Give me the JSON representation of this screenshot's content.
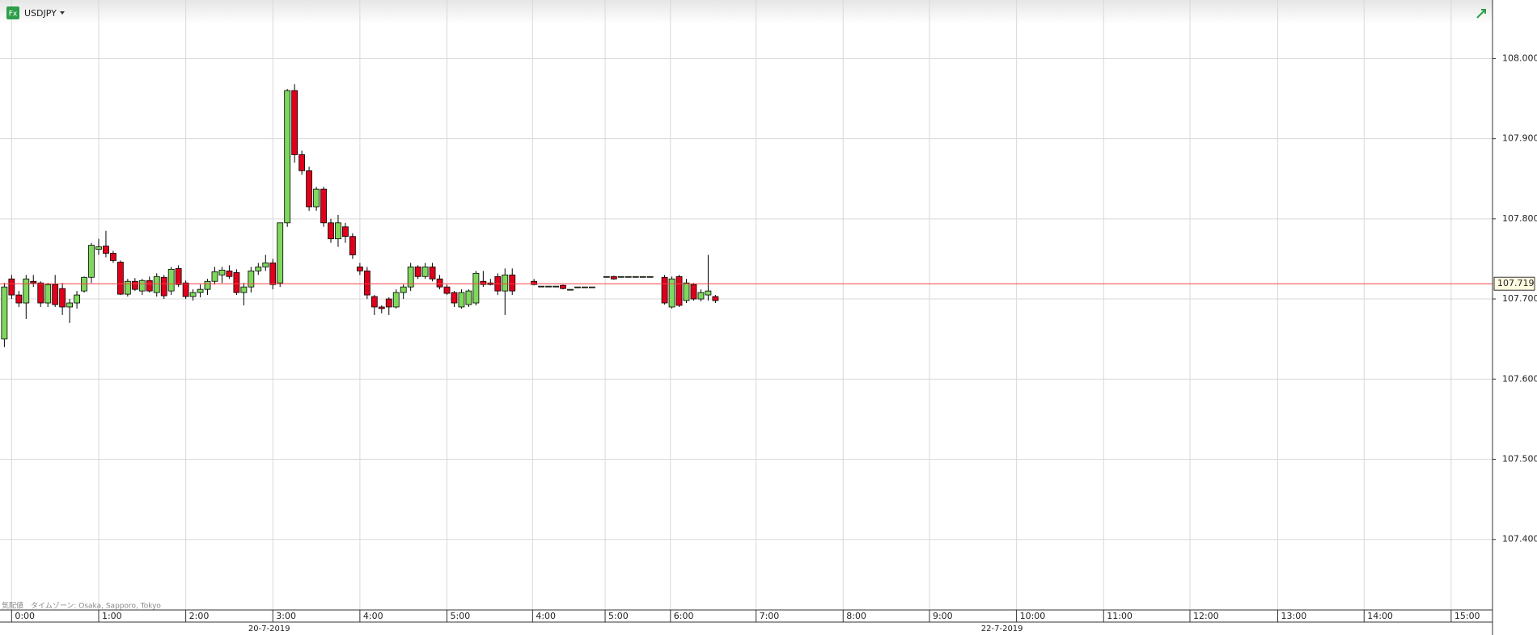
{
  "chart_data": {
    "type": "candlestick",
    "icon": "Fx",
    "symbol": "USDJPY",
    "footnote": "気配値　タイムゾーン:  Osaka, Sapporo, Tokyo",
    "series": [
      {
        "name": "USDJPY",
        "up_color": "#7fd85c",
        "down_color": "#e0001b",
        "x": [
          -1,
          0,
          1,
          2,
          3,
          4,
          5,
          6,
          7,
          8,
          9,
          10,
          11,
          12,
          13,
          14,
          15,
          16,
          17,
          18,
          19,
          20,
          21,
          22,
          23,
          24,
          25,
          26,
          27,
          28,
          29,
          30,
          31,
          32,
          33,
          34,
          35,
          36,
          37,
          38,
          39,
          40,
          41,
          42,
          43,
          44,
          45,
          46,
          47,
          48,
          49,
          50,
          51,
          52,
          53,
          54,
          55,
          56,
          57,
          58,
          59,
          60,
          61,
          62,
          63,
          64,
          65,
          66,
          67,
          68,
          69,
          72,
          73,
          74,
          75,
          76,
          77,
          78,
          79,
          80,
          82,
          83,
          84,
          85,
          86,
          87,
          88,
          90,
          91,
          92,
          93,
          94,
          95,
          96,
          97
        ],
        "open": [
          107.65,
          107.725,
          107.705,
          107.695,
          107.722,
          107.72,
          107.695,
          107.718,
          107.713,
          107.69,
          107.695,
          107.71,
          107.727,
          107.762,
          107.766,
          107.757,
          107.746,
          107.706,
          107.722,
          107.71,
          107.723,
          107.708,
          107.727,
          107.71,
          107.738,
          107.72,
          107.703,
          107.708,
          107.712,
          107.722,
          107.73,
          107.735,
          107.733,
          107.708,
          107.715,
          107.735,
          107.74,
          107.745,
          107.72,
          107.795,
          107.96,
          107.88,
          107.86,
          107.815,
          107.837,
          107.795,
          107.775,
          107.79,
          107.778,
          107.74,
          107.735,
          107.703,
          107.69,
          107.7,
          107.69,
          107.708,
          107.715,
          107.74,
          107.728,
          107.74,
          107.725,
          107.715,
          107.708,
          107.69,
          107.693,
          107.695,
          107.722,
          107.72,
          107.728,
          107.71,
          107.73,
          107.722,
          107.716,
          107.716,
          107.716,
          107.717,
          107.712,
          107.715,
          107.715,
          107.715,
          107.728,
          107.728,
          107.728,
          107.728,
          107.728,
          107.728,
          107.728,
          107.727,
          107.69,
          107.728,
          107.698,
          107.718,
          107.7,
          107.705,
          107.703
        ],
        "high": [
          107.72,
          107.73,
          107.71,
          107.73,
          107.73,
          107.722,
          107.72,
          107.73,
          107.72,
          107.7,
          107.71,
          107.728,
          107.77,
          107.775,
          107.785,
          107.76,
          107.748,
          107.725,
          107.726,
          107.725,
          107.728,
          107.732,
          107.73,
          107.74,
          107.742,
          107.723,
          107.712,
          107.718,
          107.725,
          107.74,
          107.74,
          107.742,
          107.737,
          107.72,
          107.74,
          107.745,
          107.755,
          107.75,
          107.795,
          107.962,
          107.968,
          107.885,
          107.865,
          107.84,
          107.84,
          107.8,
          107.805,
          107.795,
          107.782,
          107.745,
          107.74,
          107.705,
          107.692,
          107.702,
          107.712,
          107.718,
          107.745,
          107.742,
          107.745,
          107.745,
          107.73,
          107.718,
          107.71,
          107.712,
          107.712,
          107.735,
          107.735,
          107.725,
          107.732,
          107.738,
          107.738,
          107.725,
          107.716,
          107.716,
          107.716,
          107.718,
          107.712,
          107.715,
          107.715,
          107.715,
          107.728,
          107.729,
          107.728,
          107.728,
          107.728,
          107.728,
          107.728,
          107.73,
          107.728,
          107.73,
          107.725,
          107.72,
          107.712,
          107.755,
          107.705
        ],
        "low": [
          107.64,
          107.7,
          107.69,
          107.675,
          107.715,
          107.69,
          107.69,
          107.69,
          107.68,
          107.67,
          107.688,
          107.708,
          107.72,
          107.755,
          107.752,
          107.745,
          107.705,
          107.703,
          107.71,
          107.705,
          107.708,
          107.703,
          107.7,
          107.705,
          107.715,
          107.7,
          107.698,
          107.702,
          107.705,
          107.718,
          107.72,
          107.725,
          107.705,
          107.692,
          107.708,
          107.73,
          107.735,
          107.712,
          107.715,
          107.79,
          107.87,
          107.855,
          107.81,
          107.81,
          107.79,
          107.77,
          107.765,
          107.77,
          107.75,
          107.73,
          107.7,
          107.68,
          107.682,
          107.68,
          107.688,
          107.7,
          107.71,
          107.725,
          107.725,
          107.722,
          107.712,
          107.705,
          107.69,
          107.688,
          107.69,
          107.692,
          107.715,
          107.717,
          107.705,
          107.68,
          107.705,
          107.717,
          107.716,
          107.716,
          107.716,
          107.712,
          107.712,
          107.715,
          107.715,
          107.715,
          107.728,
          107.724,
          107.728,
          107.728,
          107.728,
          107.728,
          107.728,
          107.693,
          107.688,
          107.69,
          107.695,
          107.698,
          107.697,
          107.698,
          107.695
        ],
        "close": [
          107.715,
          107.705,
          107.695,
          107.725,
          107.72,
          107.695,
          107.718,
          107.693,
          107.69,
          107.695,
          107.705,
          107.727,
          107.767,
          107.765,
          107.757,
          107.748,
          107.706,
          107.722,
          107.712,
          107.723,
          107.71,
          107.728,
          107.704,
          107.737,
          107.718,
          107.703,
          107.708,
          107.712,
          107.722,
          107.734,
          107.736,
          107.728,
          107.708,
          107.715,
          107.735,
          107.74,
          107.745,
          107.718,
          107.795,
          107.96,
          107.88,
          107.86,
          107.815,
          107.837,
          107.795,
          107.775,
          107.795,
          107.778,
          107.755,
          107.735,
          107.705,
          107.69,
          107.688,
          107.69,
          107.708,
          107.715,
          107.74,
          107.728,
          107.74,
          107.725,
          107.715,
          107.707,
          107.695,
          107.708,
          107.71,
          107.732,
          107.718,
          107.718,
          107.71,
          107.73,
          107.71,
          107.718,
          107.716,
          107.716,
          107.716,
          107.713,
          107.712,
          107.715,
          107.715,
          107.715,
          107.728,
          107.725,
          107.728,
          107.728,
          107.728,
          107.728,
          107.728,
          107.695,
          107.725,
          107.692,
          107.72,
          107.7,
          107.708,
          107.71,
          107.698
        ]
      }
    ],
    "last_price": 107.719,
    "last_price_color": "#ff4040",
    "ylim": [
      107.312,
      108.073
    ],
    "yticks": [
      {
        "value": 107.4,
        "label": "107.400"
      },
      {
        "value": 107.5,
        "label": "107.500"
      },
      {
        "value": 107.6,
        "label": "107.600"
      },
      {
        "value": 107.7,
        "label": "107.700"
      },
      {
        "value": 107.8,
        "label": "107.800"
      },
      {
        "value": 107.9,
        "label": "107.900"
      },
      {
        "value": 108.0,
        "label": "108.000"
      }
    ],
    "xlim": [
      -1.6,
      204.1
    ],
    "xticks": [
      {
        "value": 0,
        "label": "0:00"
      },
      {
        "value": 12,
        "label": "1:00"
      },
      {
        "value": 24,
        "label": "2:00"
      },
      {
        "value": 36,
        "label": "3:00"
      },
      {
        "value": 48,
        "label": "4:00"
      },
      {
        "value": 60,
        "label": "5:00"
      },
      {
        "value": 71.8,
        "label": "4:00"
      },
      {
        "value": 81.8,
        "label": "5:00"
      },
      {
        "value": 90.8,
        "label": "6:00"
      },
      {
        "value": 102.6,
        "label": "7:00"
      },
      {
        "value": 114.6,
        "label": "8:00"
      },
      {
        "value": 126.5,
        "label": "9:00"
      },
      {
        "value": 138.5,
        "label": "10:00"
      },
      {
        "value": 150.5,
        "label": "11:00"
      },
      {
        "value": 162.4,
        "label": "12:00"
      },
      {
        "value": 174.5,
        "label": "13:00"
      },
      {
        "value": 186.4,
        "label": "14:00"
      },
      {
        "value": 198.4,
        "label": "15:00"
      }
    ],
    "dates": [
      {
        "value": 35.5,
        "label": "20-7-2019"
      },
      {
        "value": 136.5,
        "label": "22-7-2019"
      }
    ],
    "grid": true
  }
}
